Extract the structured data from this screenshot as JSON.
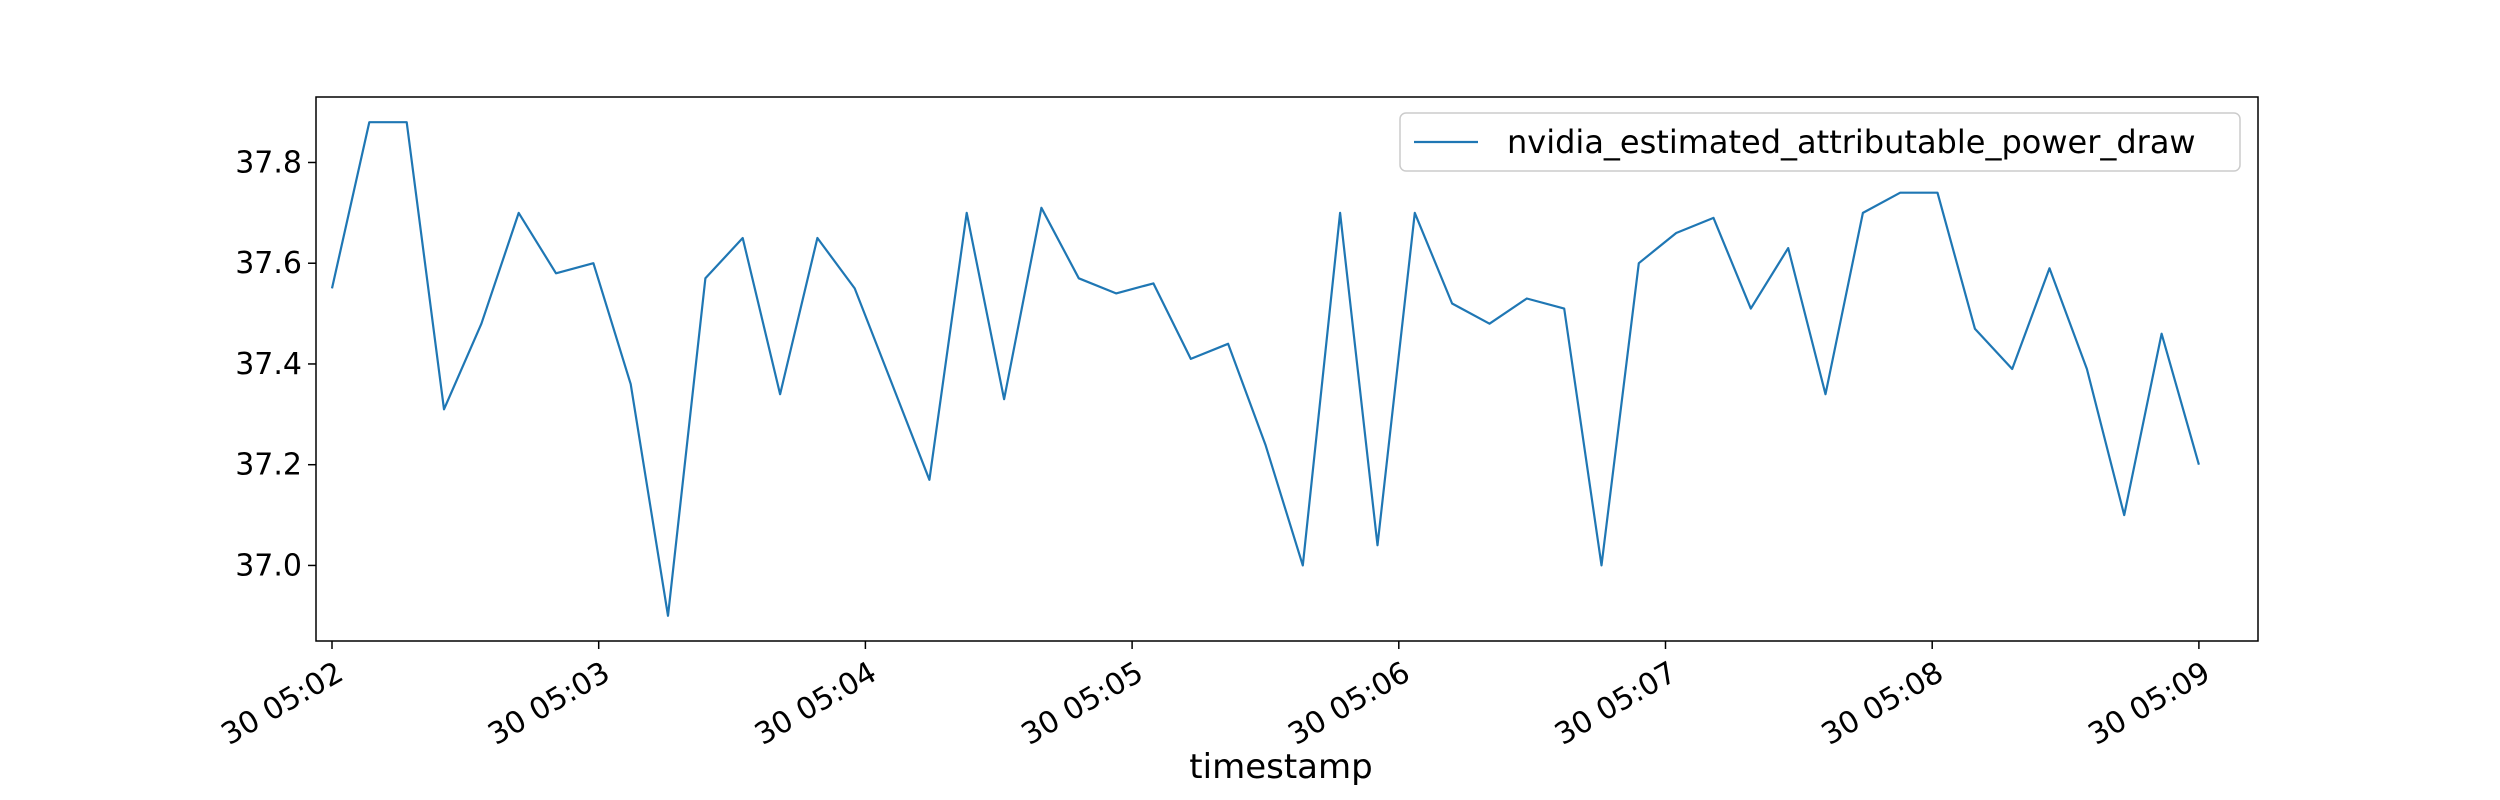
{
  "chart_data": {
    "type": "line",
    "title": "",
    "xlabel": "timestamp",
    "ylabel": "",
    "x_tick_labels": [
      "30 05:02",
      "30 05:03",
      "30 05:04",
      "30 05:05",
      "30 05:06",
      "30 05:07",
      "30 05:08",
      "30 05:09"
    ],
    "y_ticks": [
      37.0,
      37.2,
      37.4,
      37.6,
      37.8
    ],
    "y_tick_labels": [
      "37.0",
      "37.2",
      "37.4",
      "37.6",
      "37.8"
    ],
    "ylim": [
      36.85,
      37.93
    ],
    "xlim_minutes": [
      2.0,
      9.0
    ],
    "legend_position": "top-right",
    "grid": false,
    "series": [
      {
        "name": "nvidia_estimated_attributable_power_draw",
        "color": "#1f77b4",
        "x": [
          2.0,
          2.14,
          2.28,
          2.42,
          2.56,
          2.7,
          2.84,
          2.98,
          3.12,
          3.26,
          3.4,
          3.54,
          3.68,
          3.82,
          3.96,
          4.1,
          4.24,
          4.38,
          4.52,
          4.66,
          4.8,
          4.94,
          5.08,
          5.22,
          5.36,
          5.5,
          5.64,
          5.78,
          5.92,
          6.06,
          6.2,
          6.34,
          6.48,
          6.62,
          6.76,
          6.9,
          7.04,
          7.18,
          7.32,
          7.46,
          7.6,
          7.74,
          7.88,
          8.02,
          8.16,
          8.3,
          8.44,
          8.58,
          8.72,
          8.86,
          9.0
        ],
        "values": [
          37.55,
          37.88,
          37.88,
          37.31,
          37.48,
          37.7,
          37.58,
          37.6,
          37.36,
          36.9,
          37.57,
          37.65,
          37.34,
          37.65,
          37.55,
          37.36,
          37.17,
          37.7,
          37.33,
          37.71,
          37.57,
          37.54,
          37.56,
          37.41,
          37.44,
          37.24,
          37.0,
          37.7,
          37.04,
          37.7,
          37.52,
          37.48,
          37.53,
          37.51,
          37.0,
          37.6,
          37.66,
          37.69,
          37.51,
          37.63,
          37.34,
          37.7,
          37.74,
          37.74,
          37.47,
          37.39,
          37.59,
          37.39,
          37.1,
          37.46,
          37.2
        ]
      }
    ]
  }
}
